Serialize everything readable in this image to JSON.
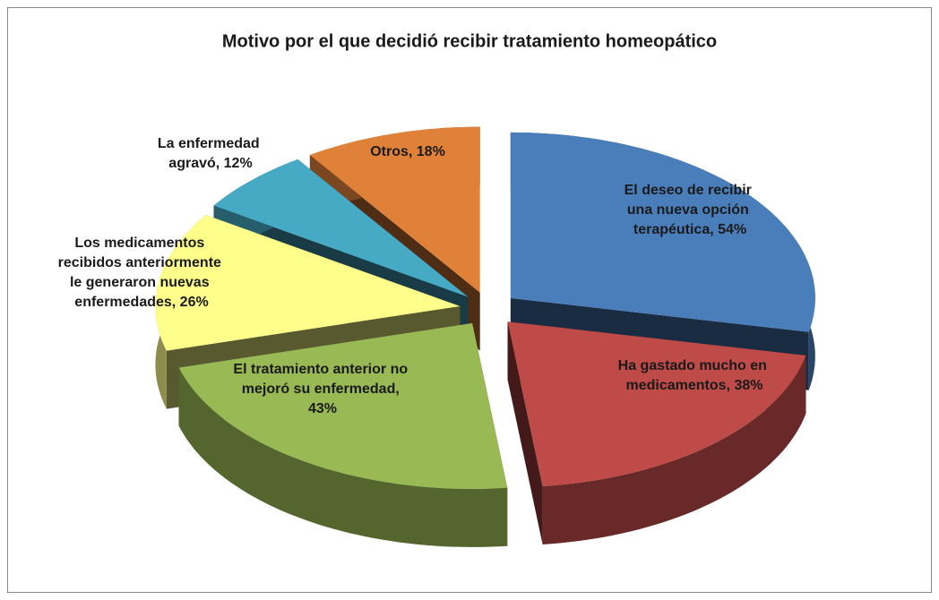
{
  "chart_data": {
    "type": "pie",
    "title": "Motivo por el que decidió recibir tratamiento homeopático",
    "values": [
      54,
      38,
      43,
      26,
      12,
      18
    ],
    "value_labels": [
      "El deseo de recibir una nueva opción terapéutica, 54%",
      "Ha gastado mucho en medicamentos, 38%",
      "El tratamiento anterior no mejoró su enfermedad, 43%",
      "Los medicamentos recibidos anteriormente le generaron nuevas enfermedades, 26%",
      "La enfermedad agravó, 12%",
      "Otros, 18%"
    ],
    "colors": [
      "#4a7ebb",
      "#be4b48",
      "#98b954",
      "#fefe8a",
      "#46aac5",
      "#e0813a"
    ]
  }
}
